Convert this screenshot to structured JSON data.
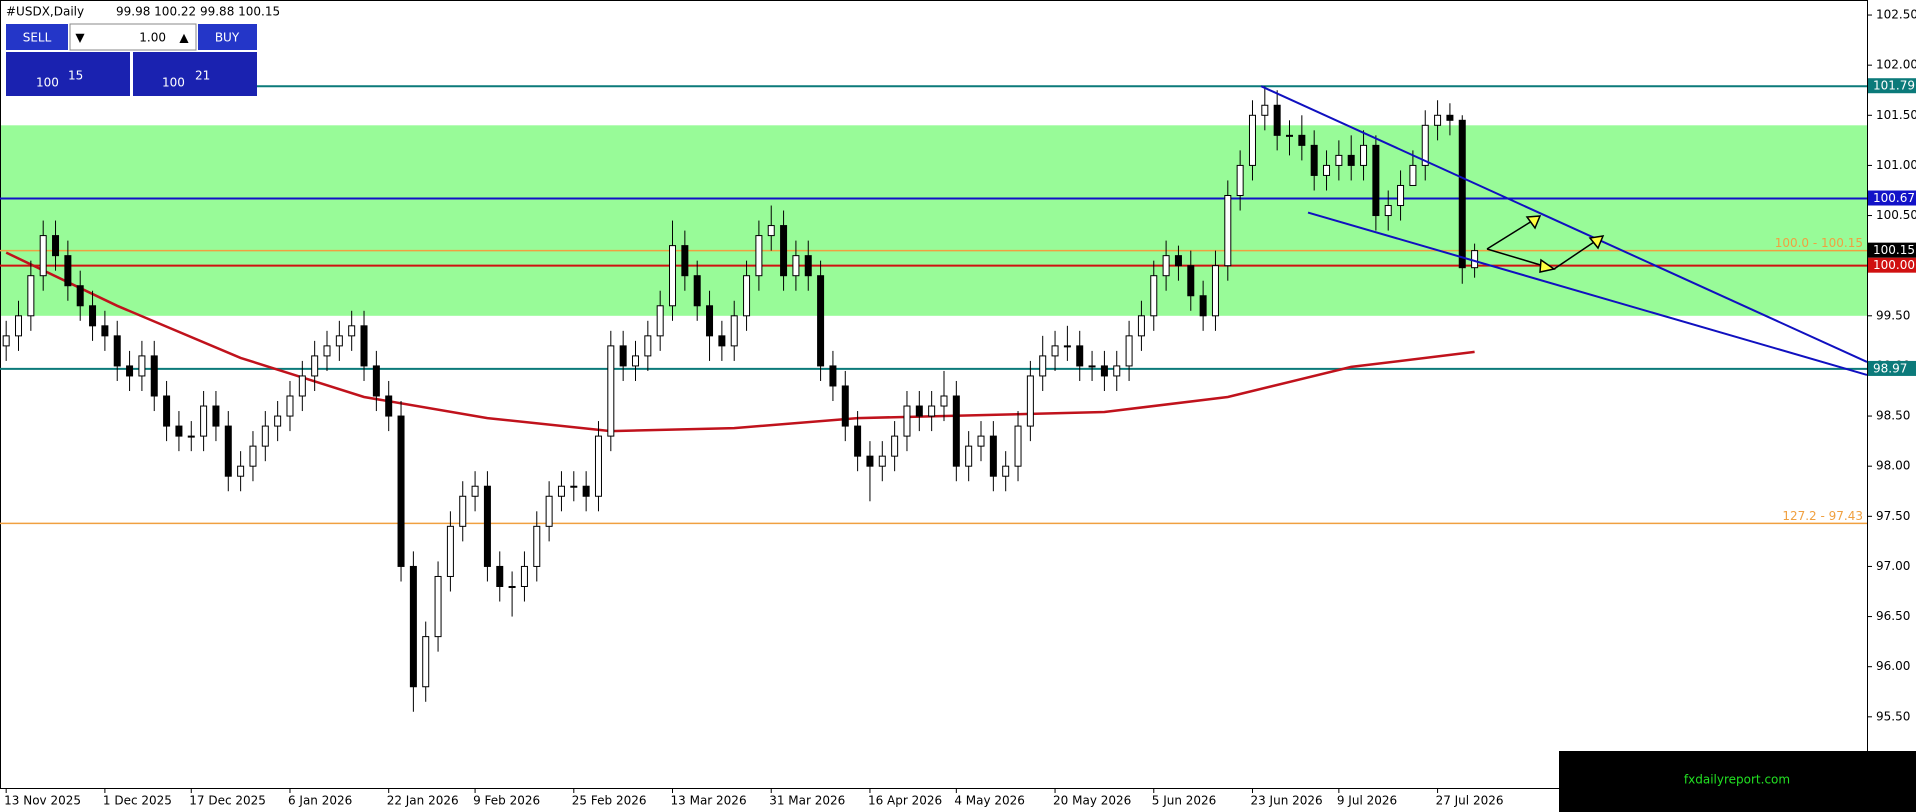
{
  "chart_data": {
    "type": "candlestick",
    "title": "#USDX,Daily",
    "ohlc_label": "99.98 100.22 99.88 100.15",
    "categories": [
      "13 Nov 2025",
      null,
      null,
      null,
      null,
      null,
      null,
      null,
      "1 Dec 2025",
      null,
      null,
      null,
      null,
      null,
      null,
      "17 Dec 2025",
      null,
      null,
      null,
      null,
      null,
      null,
      null,
      "6 Jan 2026",
      null,
      null,
      null,
      null,
      null,
      null,
      null,
      "22 Jan 2026",
      null,
      null,
      null,
      null,
      null,
      null,
      "9 Feb 2026",
      null,
      null,
      null,
      null,
      null,
      null,
      null,
      "25 Feb 2026",
      null,
      null,
      null,
      null,
      null,
      null,
      null,
      "13 Mar 2026",
      null,
      null,
      null,
      null,
      null,
      null,
      null,
      "31 Mar 2026",
      null,
      null,
      null,
      null,
      null,
      null,
      null,
      "16 Apr 2026",
      null,
      null,
      null,
      null,
      null,
      null,
      "4 May 2026",
      null,
      null,
      null,
      null,
      null,
      null,
      null,
      "20 May 2026",
      null,
      null,
      null,
      null,
      null,
      null,
      null,
      "5 Jun 2026",
      null,
      null,
      null,
      null,
      null,
      null,
      null,
      "23 Jun 2026",
      null,
      null,
      null,
      null,
      null,
      null,
      "9 Jul 2026",
      null,
      null,
      null,
      null,
      null,
      null,
      null,
      "27 Jul 2026",
      null,
      null,
      null
    ],
    "open": [
      99.2,
      99.3,
      99.5,
      99.9,
      100.3,
      100.1,
      99.8,
      99.6,
      99.4,
      99.3,
      99.0,
      98.9,
      99.1,
      98.7,
      98.4,
      98.3,
      98.3,
      98.6,
      98.4,
      97.9,
      98.0,
      98.2,
      98.4,
      98.5,
      98.7,
      98.9,
      99.1,
      99.2,
      99.3,
      99.4,
      99.0,
      98.7,
      98.5,
      97.0,
      95.8,
      96.3,
      96.9,
      97.4,
      97.7,
      97.8,
      97.0,
      96.8,
      96.8,
      97.0,
      97.4,
      97.7,
      97.8,
      97.8,
      97.7,
      98.3,
      99.2,
      99.0,
      99.1,
      99.3,
      99.6,
      100.2,
      99.9,
      99.6,
      99.3,
      99.2,
      99.5,
      99.9,
      100.3,
      100.4,
      99.9,
      100.1,
      99.9,
      99.0,
      98.8,
      98.4,
      98.1,
      98.0,
      98.1,
      98.3,
      98.6,
      98.5,
      98.6,
      98.7,
      98.0,
      98.2,
      98.3,
      97.9,
      98.0,
      98.4,
      98.9,
      99.1,
      99.2,
      99.2,
      99.0,
      99.0,
      98.9,
      99.0,
      99.3,
      99.5,
      99.9,
      100.1,
      100.0,
      99.7,
      99.5,
      100.0,
      100.7,
      101.0,
      101.5,
      101.6,
      101.3,
      101.3,
      101.2,
      100.9,
      101.0,
      101.1,
      101.0,
      101.2,
      100.5,
      100.6,
      100.8,
      101.0,
      101.4,
      101.5,
      101.45,
      99.98
    ],
    "high": [
      99.45,
      99.65,
      100.05,
      100.45,
      100.45,
      100.25,
      99.95,
      99.75,
      99.55,
      99.45,
      99.15,
      99.25,
      99.25,
      98.85,
      98.55,
      98.45,
      98.75,
      98.75,
      98.55,
      98.15,
      98.35,
      98.55,
      98.65,
      98.85,
      99.05,
      99.25,
      99.35,
      99.45,
      99.55,
      99.55,
      99.15,
      98.85,
      98.65,
      97.15,
      96.45,
      97.05,
      97.55,
      97.85,
      97.95,
      97.95,
      97.15,
      96.95,
      97.15,
      97.55,
      97.85,
      97.95,
      97.95,
      97.95,
      98.45,
      99.35,
      99.35,
      99.25,
      99.45,
      99.75,
      100.45,
      100.35,
      100.05,
      99.75,
      99.45,
      99.65,
      100.05,
      100.45,
      100.6,
      100.55,
      100.25,
      100.25,
      100.05,
      99.15,
      98.95,
      98.55,
      98.25,
      98.25,
      98.45,
      98.75,
      98.75,
      98.75,
      98.95,
      98.85,
      98.35,
      98.45,
      98.45,
      98.15,
      98.55,
      99.05,
      99.3,
      99.35,
      99.4,
      99.35,
      99.15,
      99.15,
      99.15,
      99.45,
      99.65,
      100.05,
      100.25,
      100.2,
      100.15,
      99.85,
      100.15,
      100.85,
      101.15,
      101.65,
      101.79,
      101.75,
      101.45,
      101.5,
      101.35,
      101.15,
      101.25,
      101.3,
      101.35,
      101.3,
      100.75,
      100.95,
      101.15,
      101.55,
      101.65,
      101.62,
      101.5,
      100.22
    ],
    "low": [
      99.05,
      99.15,
      99.35,
      99.75,
      99.95,
      99.65,
      99.45,
      99.25,
      99.15,
      98.85,
      98.75,
      98.75,
      98.55,
      98.25,
      98.15,
      98.15,
      98.15,
      98.25,
      97.75,
      97.75,
      97.85,
      98.05,
      98.25,
      98.35,
      98.55,
      98.75,
      98.95,
      99.05,
      99.15,
      98.85,
      98.55,
      98.35,
      96.85,
      95.55,
      95.65,
      96.15,
      96.75,
      97.25,
      97.55,
      96.85,
      96.65,
      96.5,
      96.65,
      96.85,
      97.25,
      97.55,
      97.65,
      97.55,
      97.55,
      98.15,
      98.85,
      98.85,
      98.95,
      99.15,
      99.45,
      99.75,
      99.45,
      99.05,
      99.05,
      99.05,
      99.35,
      99.75,
      100.15,
      99.75,
      99.75,
      99.75,
      98.85,
      98.65,
      98.25,
      97.95,
      97.65,
      97.85,
      97.95,
      98.15,
      98.35,
      98.35,
      98.45,
      97.85,
      97.85,
      98.05,
      97.75,
      97.75,
      97.85,
      98.25,
      98.75,
      98.95,
      99.05,
      98.85,
      98.85,
      98.75,
      98.75,
      98.85,
      99.15,
      99.35,
      99.75,
      99.85,
      99.55,
      99.35,
      99.35,
      99.85,
      100.55,
      100.85,
      101.35,
      101.15,
      101.1,
      101.05,
      100.75,
      100.75,
      100.85,
      100.85,
      100.85,
      100.35,
      100.35,
      100.45,
      100.85,
      100.85,
      101.25,
      101.3,
      99.82,
      99.88
    ],
    "close": [
      99.3,
      99.5,
      99.9,
      100.3,
      100.1,
      99.8,
      99.6,
      99.4,
      99.3,
      99.0,
      98.9,
      99.1,
      98.7,
      98.4,
      98.3,
      98.3,
      98.6,
      98.4,
      97.9,
      98.0,
      98.2,
      98.4,
      98.5,
      98.7,
      98.9,
      99.1,
      99.2,
      99.3,
      99.4,
      99.0,
      98.7,
      98.5,
      97.0,
      95.8,
      96.3,
      96.9,
      97.4,
      97.7,
      97.8,
      97.0,
      96.8,
      96.8,
      97.0,
      97.4,
      97.7,
      97.8,
      97.8,
      97.7,
      98.3,
      99.2,
      99.0,
      99.1,
      99.3,
      99.6,
      100.2,
      99.9,
      99.6,
      99.3,
      99.2,
      99.5,
      99.9,
      100.3,
      100.4,
      99.9,
      100.1,
      99.9,
      99.0,
      98.8,
      98.4,
      98.1,
      98.0,
      98.1,
      98.3,
      98.6,
      98.5,
      98.6,
      98.7,
      98.0,
      98.2,
      98.3,
      97.9,
      98.0,
      98.4,
      98.9,
      99.1,
      99.2,
      99.2,
      99.0,
      99.0,
      98.9,
      99.0,
      99.3,
      99.5,
      99.9,
      100.1,
      100.0,
      99.7,
      99.5,
      100.0,
      100.7,
      101.0,
      101.5,
      101.6,
      101.3,
      101.3,
      101.2,
      100.9,
      101.0,
      101.1,
      101.0,
      101.2,
      100.5,
      100.6,
      100.8,
      101.0,
      101.4,
      101.5,
      101.45,
      99.98,
      100.15
    ],
    "ma": {
      "color": "#c0121c",
      "x": [
        0,
        9,
        19,
        29,
        39,
        49,
        59,
        69,
        79,
        89,
        99,
        109,
        119
      ],
      "values": [
        100.13,
        99.6,
        99.08,
        98.69,
        98.48,
        98.35,
        98.38,
        98.48,
        98.51,
        98.54,
        98.69,
        98.99,
        99.14
      ]
    },
    "zone": {
      "color": "#98fb98",
      "values": [
        99.5,
        101.4
      ]
    },
    "trendlines": [
      {
        "color": "#1010c0",
        "x": [
          101.7,
          150.8
        ],
        "values": [
          101.79,
          99.04
        ]
      },
      {
        "color": "#1010c0",
        "x": [
          105.5,
          150.8
        ],
        "values": [
          100.53,
          98.91
        ]
      }
    ],
    "hlines": [
      {
        "value": 101.79,
        "label": "101.79",
        "color": "#0b7a7a"
      },
      {
        "value": 100.67,
        "label": "100.67",
        "color": "#1212c8"
      },
      {
        "value": 100.0,
        "label": "100.00",
        "color": "#d01010"
      },
      {
        "value": 98.97,
        "label": "98.97",
        "color": "#0b7a7a"
      }
    ],
    "price_marker": {
      "value": 100.15,
      "label": "100.15"
    },
    "fib_levels": [
      {
        "value": 100.15,
        "label": "100.0 - 100.15",
        "color": "#f0a040"
      },
      {
        "value": 97.43,
        "label": "127.2 - 97.43",
        "color": "#f0a040"
      }
    ],
    "xlim": [
      -0.5,
      150.8
    ],
    "ylim": [
      94.79,
      102.65
    ],
    "yticks": [
      {
        "value": 95.5,
        "label": "95.50"
      },
      {
        "value": 96,
        "label": "96.00"
      },
      {
        "value": 96.5,
        "label": "96.50"
      },
      {
        "value": 97,
        "label": "97.00"
      },
      {
        "value": 97.5,
        "label": "97.50"
      },
      {
        "value": 98,
        "label": "98.00"
      },
      {
        "value": 98.5,
        "label": "98.50"
      },
      {
        "value": 99,
        "label": "99.00"
      },
      {
        "value": 99.5,
        "label": "99.50"
      },
      {
        "value": 100,
        "label": "100.00"
      },
      {
        "value": 100.5,
        "label": "100.50"
      },
      {
        "value": 101,
        "label": "101.00"
      },
      {
        "value": 101.5,
        "label": "101.50"
      },
      {
        "value": 102,
        "label": "102.00"
      },
      {
        "value": 102.5,
        "label": "102.50"
      }
    ]
  },
  "trade_panel": {
    "sell": "SELL",
    "lot": "1.00",
    "buy": "BUY",
    "sell_big": "100",
    "sell_pips": "15",
    "buy_big": "100",
    "buy_pips": "21"
  },
  "watermark": "fxdailyreport.com"
}
